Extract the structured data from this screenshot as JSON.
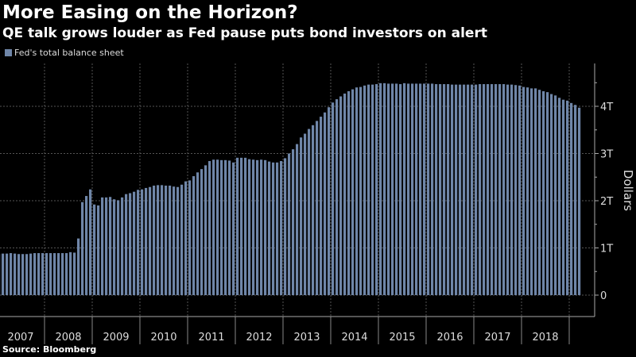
{
  "chart_data": {
    "type": "bar",
    "title": "More Easing on the Horizon?",
    "subtitle": "QE talk grows louder as Fed pause puts bond investors on alert",
    "source": "Source: Bloomberg",
    "ylabel": "Dollars",
    "ylim": [
      0,
      4.75
    ],
    "yticks": [
      {
        "v": 0,
        "label": "0"
      },
      {
        "v": 1,
        "label": "1T"
      },
      {
        "v": 2,
        "label": "2T"
      },
      {
        "v": 3,
        "label": "3T"
      },
      {
        "v": 4,
        "label": "4T"
      }
    ],
    "xtick_labels": [
      "2007",
      "2008",
      "2009",
      "2010",
      "2011",
      "2012",
      "2013",
      "2014",
      "2015",
      "2016",
      "2017",
      "2018"
    ],
    "x_start": "2007-01",
    "x_frequency": "monthly",
    "grid": true,
    "legend_position": "top-left",
    "color": "#6f86a8",
    "series": [
      {
        "name": "Fed's total balance sheet",
        "values": [
          0.87,
          0.88,
          0.88,
          0.89,
          0.88,
          0.87,
          0.87,
          0.87,
          0.88,
          0.89,
          0.89,
          0.89,
          0.89,
          0.89,
          0.89,
          0.89,
          0.89,
          0.89,
          0.91,
          0.9,
          1.2,
          1.97,
          2.1,
          2.24,
          1.92,
          1.9,
          2.07,
          2.07,
          2.08,
          2.03,
          2.01,
          2.07,
          2.14,
          2.16,
          2.19,
          2.23,
          2.24,
          2.27,
          2.29,
          2.32,
          2.33,
          2.33,
          2.32,
          2.32,
          2.3,
          2.29,
          2.34,
          2.41,
          2.43,
          2.52,
          2.6,
          2.67,
          2.75,
          2.84,
          2.87,
          2.87,
          2.86,
          2.86,
          2.85,
          2.81,
          2.91,
          2.91,
          2.91,
          2.88,
          2.87,
          2.86,
          2.87,
          2.86,
          2.83,
          2.81,
          2.81,
          2.84,
          2.9,
          3.0,
          3.09,
          3.2,
          3.34,
          3.42,
          3.52,
          3.6,
          3.69,
          3.78,
          3.87,
          3.98,
          4.08,
          4.15,
          4.21,
          4.27,
          4.32,
          4.36,
          4.4,
          4.41,
          4.44,
          4.46,
          4.46,
          4.47,
          4.49,
          4.49,
          4.48,
          4.48,
          4.48,
          4.47,
          4.49,
          4.48,
          4.48,
          4.48,
          4.48,
          4.48,
          4.48,
          4.48,
          4.47,
          4.47,
          4.47,
          4.47,
          4.46,
          4.46,
          4.46,
          4.46,
          4.46,
          4.46,
          4.46,
          4.47,
          4.47,
          4.47,
          4.47,
          4.47,
          4.47,
          4.47,
          4.46,
          4.46,
          4.45,
          4.44,
          4.41,
          4.4,
          4.38,
          4.38,
          4.35,
          4.32,
          4.3,
          4.26,
          4.23,
          4.18,
          4.14,
          4.12,
          4.07,
          4.03,
          3.97
        ]
      }
    ]
  }
}
